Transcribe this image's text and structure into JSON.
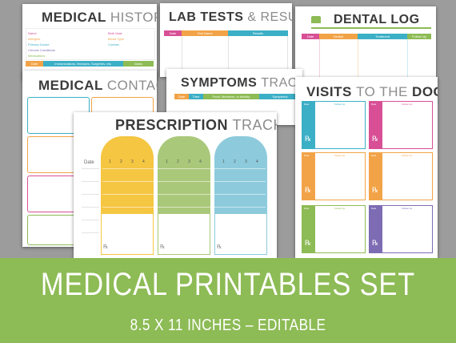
{
  "colors": {
    "orange": "#f2a347",
    "teal": "#3bafc6",
    "green": "#8dbb55",
    "pink": "#d84f96",
    "purple": "#7d6cb3",
    "yellow": "#f5c642",
    "red": "#e2554a"
  },
  "history": {
    "title_a": "MEDICAL",
    "title_b": "HISTORY",
    "fields_left": [
      "Name",
      "Allergies",
      "Primary Doctor",
      "Chronic Conditions",
      "Medications"
    ],
    "fields_right": [
      "Birth Date",
      "Blood Type",
      "Contact"
    ],
    "bar": [
      "Date",
      "Immunizations, Illnesses, Surgeries, etc.",
      "Notes"
    ]
  },
  "lab": {
    "title_a": "LAB TESTS",
    "title_b": "&",
    "title_c": "RESULTS",
    "bar": [
      "Date",
      "Test Name",
      "Results"
    ]
  },
  "dental": {
    "title": "DENTAL LOG",
    "bar": [
      "Date",
      "Dentist",
      "Treatment",
      "Follow Up"
    ]
  },
  "contacts": {
    "title_a": "MEDICAL",
    "title_b": "CONTACTS"
  },
  "symptoms": {
    "title_a": "SYMPTOMS",
    "title_b": "TRACKER",
    "bar": [
      "Date",
      "Time",
      "Food, Medicine, or Activity",
      "Symptoms"
    ]
  },
  "visits": {
    "title_a": "VISITS",
    "title_b": "TO THE",
    "title_c": "DOCTOR",
    "card_labels": [
      "Date",
      "Doctor",
      "Clinic or Hospital",
      "Reason for Visit"
    ],
    "follow_label": "Follow Up",
    "rx": "℞"
  },
  "prescription": {
    "title_a": "PRESCRIPTION",
    "title_b": "TRACKER",
    "date_label": "Date",
    "cols": [
      "1",
      "2",
      "3",
      "4"
    ],
    "rx": "℞"
  },
  "banner": {
    "title": "MEDICAL PRINTABLES SET",
    "subtitle": "8.5 X 11 INCHES – EDITABLE"
  }
}
